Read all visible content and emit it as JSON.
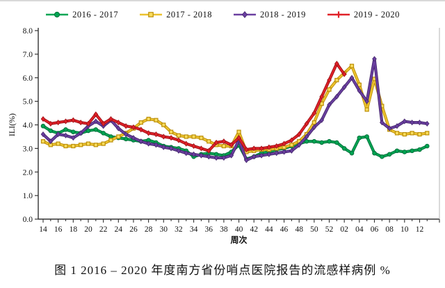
{
  "figure": {
    "caption": "图 1 2016 – 2020 年度南方省份哨点医院报告的流感样病例 %"
  },
  "chart_data": {
    "type": "line",
    "title": "",
    "xlabel": "周次",
    "ylabel": "ILI(%)",
    "ylim": [
      0,
      8
    ],
    "grid": false,
    "legend_position": "top",
    "y_ticks": [
      "0.0",
      "1.0",
      "2.0",
      "3.0",
      "4.0",
      "5.0",
      "6.0",
      "7.0",
      "8.0"
    ],
    "x_tick_labels": [
      "14",
      "16",
      "18",
      "20",
      "22",
      "24",
      "26",
      "28",
      "30",
      "32",
      "34",
      "36",
      "38",
      "40",
      "42",
      "44",
      "46",
      "48",
      "50",
      "52",
      "02",
      "04",
      "06",
      "08",
      "10",
      "12"
    ],
    "categories": [
      "14",
      "15",
      "16",
      "17",
      "18",
      "19",
      "20",
      "21",
      "22",
      "23",
      "24",
      "25",
      "26",
      "27",
      "28",
      "29",
      "30",
      "31",
      "32",
      "33",
      "34",
      "35",
      "36",
      "37",
      "38",
      "39",
      "40",
      "41",
      "42",
      "43",
      "44",
      "45",
      "46",
      "47",
      "48",
      "49",
      "50",
      "51",
      "52",
      "01",
      "02",
      "03",
      "04",
      "05",
      "06",
      "07",
      "08",
      "09",
      "10",
      "11",
      "12",
      "13"
    ],
    "series": [
      {
        "name": "2016 - 2017",
        "color": "#00a553",
        "edge": "#00713a",
        "marker": "circle",
        "values": [
          3.95,
          3.75,
          3.65,
          3.8,
          3.7,
          3.65,
          3.75,
          3.8,
          3.65,
          3.5,
          3.45,
          3.4,
          3.35,
          3.3,
          3.35,
          3.25,
          3.1,
          3.05,
          3.0,
          2.9,
          2.65,
          2.75,
          2.8,
          2.75,
          2.7,
          2.85,
          3.15,
          2.55,
          2.65,
          2.8,
          2.85,
          2.95,
          3.0,
          3.1,
          3.2,
          3.3,
          3.3,
          3.25,
          3.3,
          3.25,
          3.0,
          2.8,
          3.45,
          3.5,
          2.8,
          2.65,
          2.75,
          2.9,
          2.85,
          2.9,
          2.95,
          3.1
        ]
      },
      {
        "name": "2017 - 2018",
        "color": "#ecc22e",
        "edge": "#bb8e07",
        "marker": "square",
        "values": [
          3.3,
          3.15,
          3.2,
          3.1,
          3.1,
          3.15,
          3.2,
          3.15,
          3.2,
          3.35,
          3.5,
          3.65,
          3.85,
          4.1,
          4.25,
          4.2,
          4.0,
          3.7,
          3.55,
          3.5,
          3.5,
          3.45,
          3.3,
          3.15,
          3.1,
          3.1,
          3.7,
          2.85,
          2.9,
          2.95,
          2.95,
          3.0,
          3.05,
          3.15,
          3.3,
          3.6,
          4.1,
          4.9,
          5.5,
          5.9,
          6.2,
          6.5,
          5.7,
          4.65,
          5.95,
          4.8,
          3.8,
          3.65,
          3.6,
          3.65,
          3.6,
          3.65
        ]
      },
      {
        "name": "2018 - 2019",
        "color": "#6a3fa0",
        "edge": "#46276e",
        "marker": "diamond",
        "values": [
          3.6,
          3.3,
          3.6,
          3.55,
          3.45,
          3.65,
          3.95,
          4.15,
          3.95,
          4.2,
          3.85,
          3.6,
          3.45,
          3.3,
          3.2,
          3.15,
          3.05,
          3.0,
          2.9,
          2.8,
          2.75,
          2.7,
          2.65,
          2.6,
          2.6,
          2.7,
          3.35,
          2.5,
          2.65,
          2.7,
          2.75,
          2.8,
          2.85,
          2.9,
          3.15,
          3.5,
          3.9,
          4.2,
          4.85,
          5.2,
          5.6,
          6.0,
          5.45,
          5.0,
          6.8,
          4.1,
          3.85,
          3.95,
          4.15,
          4.1,
          4.1,
          4.05
        ]
      },
      {
        "name": "2019 - 2020",
        "color": "#e02128",
        "edge": "#9e1016",
        "marker": "diamond",
        "legend_marker": "cross",
        "values": [
          4.25,
          4.05,
          4.1,
          4.15,
          4.2,
          4.1,
          4.05,
          4.45,
          4.05,
          4.25,
          4.1,
          3.95,
          3.9,
          3.8,
          3.65,
          3.6,
          3.5,
          3.45,
          3.35,
          3.2,
          3.1,
          3.0,
          2.9,
          3.25,
          3.3,
          3.15,
          3.45,
          2.95,
          3.0,
          3.0,
          3.05,
          3.1,
          3.2,
          3.35,
          3.6,
          4.05,
          4.5,
          5.2,
          5.9,
          6.6,
          6.15,
          null,
          null,
          null,
          null,
          null,
          null,
          null,
          null,
          null,
          null,
          null
        ]
      }
    ]
  }
}
